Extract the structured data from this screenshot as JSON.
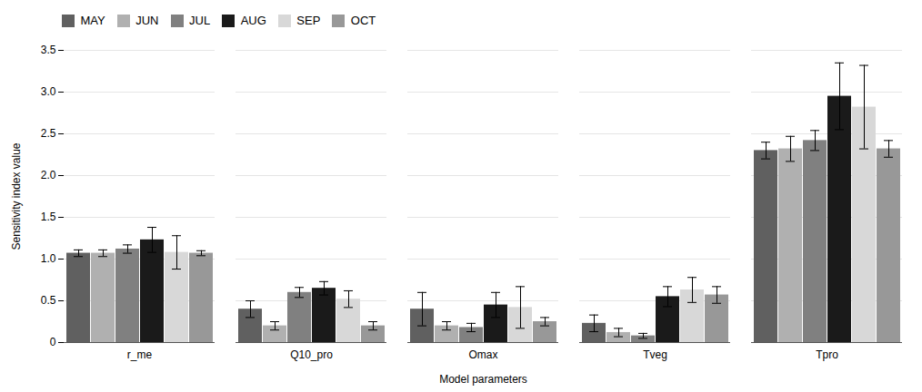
{
  "chart_data": {
    "type": "bar",
    "xlabel": "Model parameters",
    "ylabel": "Sensitivity index value",
    "categories": [
      "r_me",
      "Q10_pro",
      "Omax",
      "Tveg",
      "Tpro"
    ],
    "series": [
      {
        "name": "MAY",
        "color": "#606060",
        "values": [
          1.07,
          0.4,
          0.4,
          0.23,
          2.3
        ],
        "errors": [
          0.04,
          0.1,
          0.2,
          0.1,
          0.1
        ]
      },
      {
        "name": "JUN",
        "color": "#b0b0b0",
        "values": [
          1.07,
          0.2,
          0.2,
          0.12,
          2.32
        ],
        "errors": [
          0.04,
          0.05,
          0.05,
          0.05,
          0.15
        ]
      },
      {
        "name": "JUL",
        "color": "#808080",
        "values": [
          1.12,
          0.6,
          0.18,
          0.08,
          2.42
        ],
        "errors": [
          0.05,
          0.06,
          0.05,
          0.03,
          0.12
        ]
      },
      {
        "name": "AUG",
        "color": "#1a1a1a",
        "values": [
          1.23,
          0.65,
          0.45,
          0.55,
          2.95
        ],
        "errors": [
          0.15,
          0.08,
          0.15,
          0.12,
          0.4
        ]
      },
      {
        "name": "SEP",
        "color": "#d8d8d8",
        "values": [
          1.08,
          0.52,
          0.42,
          0.63,
          2.82
        ],
        "errors": [
          0.2,
          0.1,
          0.25,
          0.15,
          0.5
        ]
      },
      {
        "name": "OCT",
        "color": "#989898",
        "values": [
          1.07,
          0.2,
          0.25,
          0.57,
          2.32
        ],
        "errors": [
          0.03,
          0.05,
          0.05,
          0.1,
          0.1
        ]
      }
    ],
    "ylim": [
      0,
      3.5
    ],
    "yticks": [
      0,
      0.5,
      {
        "value": 1,
        "label": "1.0"
      },
      1.5,
      {
        "value": 2,
        "label": "2.0"
      },
      2.5,
      {
        "value": 3,
        "label": "3.0"
      },
      3.5
    ],
    "grid": true,
    "legend": "upper left"
  }
}
